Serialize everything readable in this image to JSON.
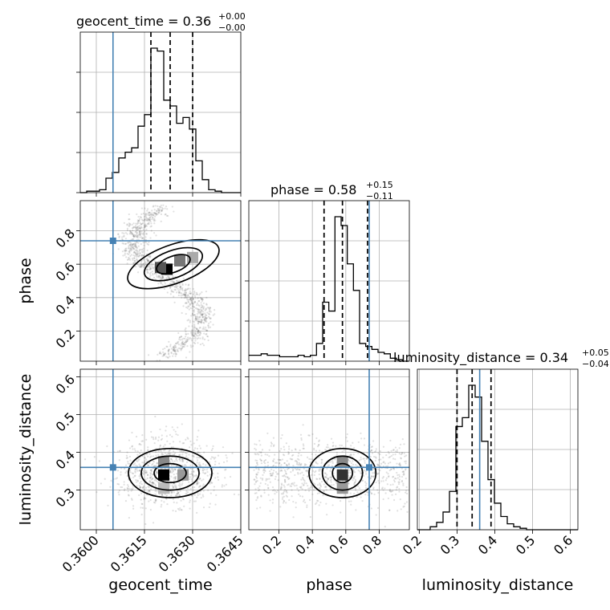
{
  "chart_data": {
    "type": "corner",
    "parameters": [
      "geocent_time",
      "phase",
      "luminosity_distance"
    ],
    "truths": {
      "geocent_time": 0.36052,
      "phase": 0.74,
      "luminosity_distance": 0.36
    },
    "summaries": [
      {
        "param": "geocent_time",
        "prefix": "geocent_time = ",
        "median": "0.36",
        "upper": "+0.00",
        "lower": "−0.00",
        "quantiles": [
          0.3617,
          0.3623,
          0.363
        ]
      },
      {
        "param": "phase",
        "prefix": "phase = ",
        "median": "0.58",
        "upper": "+0.15",
        "lower": "−0.11",
        "quantiles": [
          0.47,
          0.58,
          0.73
        ]
      },
      {
        "param": "luminosity_distance",
        "prefix": "luminosity_distance = ",
        "median": "0.34",
        "upper": "+0.05",
        "lower": "−0.04",
        "quantiles": [
          0.3,
          0.34,
          0.39
        ]
      }
    ],
    "ranges": {
      "geocent_time": [
        0.3595,
        0.3645
      ],
      "phase": [
        0.02,
        0.98
      ],
      "luminosity_distance": [
        0.195,
        0.62
      ]
    },
    "ticks": {
      "geocent_time": [
        "0.3600",
        "0.3615",
        "0.3630",
        "0.3645"
      ],
      "phase_y": [
        "0.2",
        "0.4",
        "0.6",
        "0.8"
      ],
      "phase_x": [
        "0.2",
        "0.4",
        "0.6",
        "0.8"
      ],
      "luminosity_distance_y": [
        "0.3",
        "0.4",
        "0.5",
        "0.6"
      ],
      "luminosity_distance_x": [
        "0.2",
        "0.3",
        "0.4",
        "0.5",
        "0.6"
      ]
    },
    "histograms": {
      "geocent_time": {
        "edges_start": 0.3595,
        "bin_width": 0.0002,
        "counts": [
          0,
          1,
          1,
          2,
          10,
          14,
          24,
          28,
          31,
          46,
          54,
          100,
          98,
          64,
          60,
          48,
          52,
          44,
          22,
          9,
          2,
          1,
          0,
          0,
          0
        ]
      },
      "phase": {
        "edges_start": 0.02,
        "bin_width": 0.0368,
        "counts": [
          4,
          4,
          5,
          4,
          4,
          3,
          3,
          3,
          4,
          3,
          4,
          12,
          40,
          34,
          98,
          92,
          66,
          48,
          12,
          10,
          8,
          6,
          5,
          2,
          1,
          0
        ]
      },
      "luminosity_distance": {
        "edges_start": 0.195,
        "bin_width": 0.017,
        "counts": [
          0,
          0,
          2,
          5,
          12,
          26,
          70,
          76,
          98,
          90,
          60,
          34,
          18,
          9,
          4,
          2,
          1,
          0,
          0,
          0,
          0,
          0,
          0,
          0,
          0
        ]
      }
    },
    "grid": true
  }
}
